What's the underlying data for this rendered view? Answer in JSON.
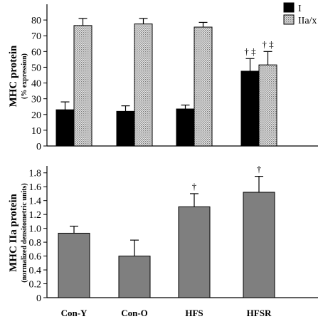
{
  "chart_data": [
    {
      "type": "bar",
      "ylabel": "MHC protein",
      "ylabel_sub": "(% expression)",
      "ylim": [
        0,
        90
      ],
      "yticks": [
        0,
        10,
        20,
        30,
        40,
        50,
        60,
        70,
        80
      ],
      "categories": [
        "Con-Y",
        "Con-O",
        "HFS",
        "HFSR"
      ],
      "legend_position": "top-right",
      "series": [
        {
          "name": "I",
          "color": "#000000",
          "pattern": "solid",
          "values": [
            23,
            22,
            23.5,
            47.5
          ],
          "errors": [
            5,
            3.5,
            2.5,
            8
          ],
          "annotations": [
            "",
            "",
            "",
            "† ‡"
          ]
        },
        {
          "name": "IIa/x",
          "color": "#cfcfcf",
          "pattern": "dotted",
          "values": [
            76.5,
            77.5,
            75.5,
            51.5
          ],
          "errors": [
            4.5,
            3.5,
            3,
            8.5
          ],
          "annotations": [
            "",
            "",
            "",
            "† ‡"
          ]
        }
      ]
    },
    {
      "type": "bar",
      "ylabel": "MHC IIa protein",
      "ylabel_sub": "(normalized densitometric units)",
      "ylim": [
        0,
        1.9
      ],
      "yticks": [
        "0",
        "0.2",
        "0.4",
        "0.6",
        "0.8",
        "1.0",
        "1.2",
        "1.4",
        "1.6",
        "1.8"
      ],
      "categories": [
        "Con-Y",
        "Con-O",
        "HFS",
        "HFSR"
      ],
      "series": [
        {
          "color": "#7f7f7f",
          "values": [
            0.93,
            0.6,
            1.31,
            1.52
          ],
          "errors": [
            0.1,
            0.23,
            0.19,
            0.23
          ],
          "annotations": [
            "",
            "",
            "†",
            "†"
          ]
        }
      ]
    }
  ]
}
